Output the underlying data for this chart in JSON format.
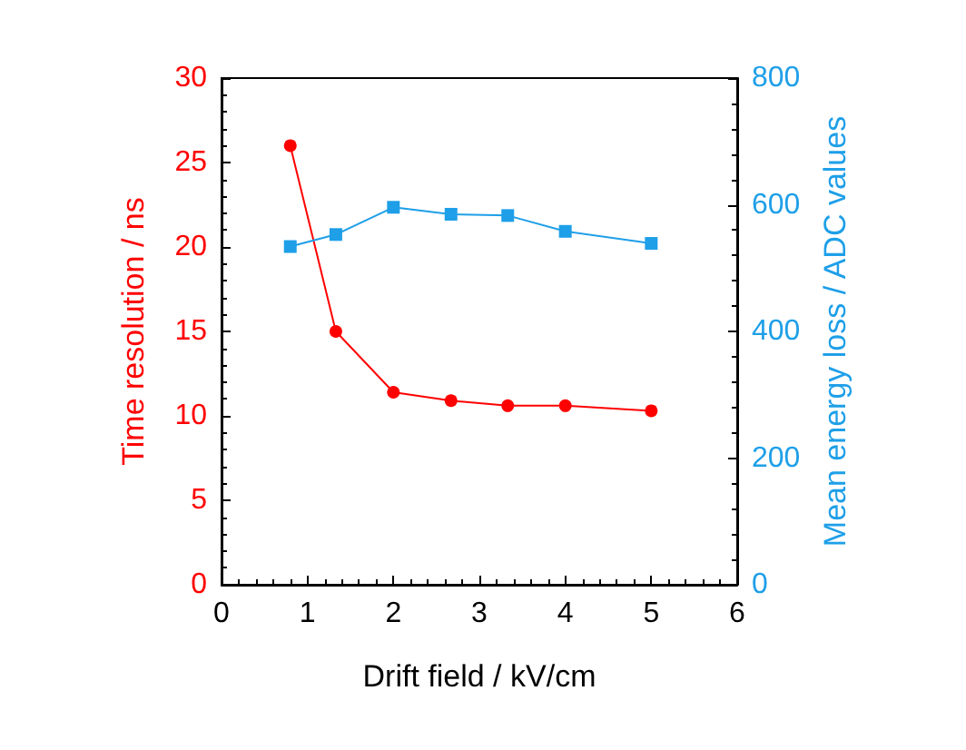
{
  "chart_data": {
    "type": "line",
    "xlabel": "Drift field / kV/cm",
    "ylabel": "Time resolution / ns",
    "y2label": "Mean energy loss / ADC values",
    "xlim": [
      0,
      6
    ],
    "xticks": [
      0,
      1,
      2,
      3,
      4,
      5,
      6
    ],
    "ylim": [
      0,
      30
    ],
    "yticks": [
      0,
      5,
      10,
      15,
      20,
      25,
      30
    ],
    "y2lim": [
      0,
      800
    ],
    "y2ticks": [
      0,
      200,
      400,
      600,
      800
    ],
    "series": [
      {
        "color": "#ff0000",
        "marker": "circle",
        "x": [
          0.8,
          1.33,
          2,
          2.67,
          3.33,
          4,
          5
        ],
        "values": [
          26,
          15,
          11.4,
          10.9,
          10.6,
          10.6,
          10.3
        ]
      },
      {
        "color": "#1e9fe8",
        "marker": "square",
        "axis": "y2",
        "x": [
          0.8,
          1.33,
          2,
          2.67,
          3.33,
          4,
          5
        ],
        "values": [
          534,
          553,
          596,
          585,
          583,
          558,
          539
        ]
      }
    ]
  }
}
